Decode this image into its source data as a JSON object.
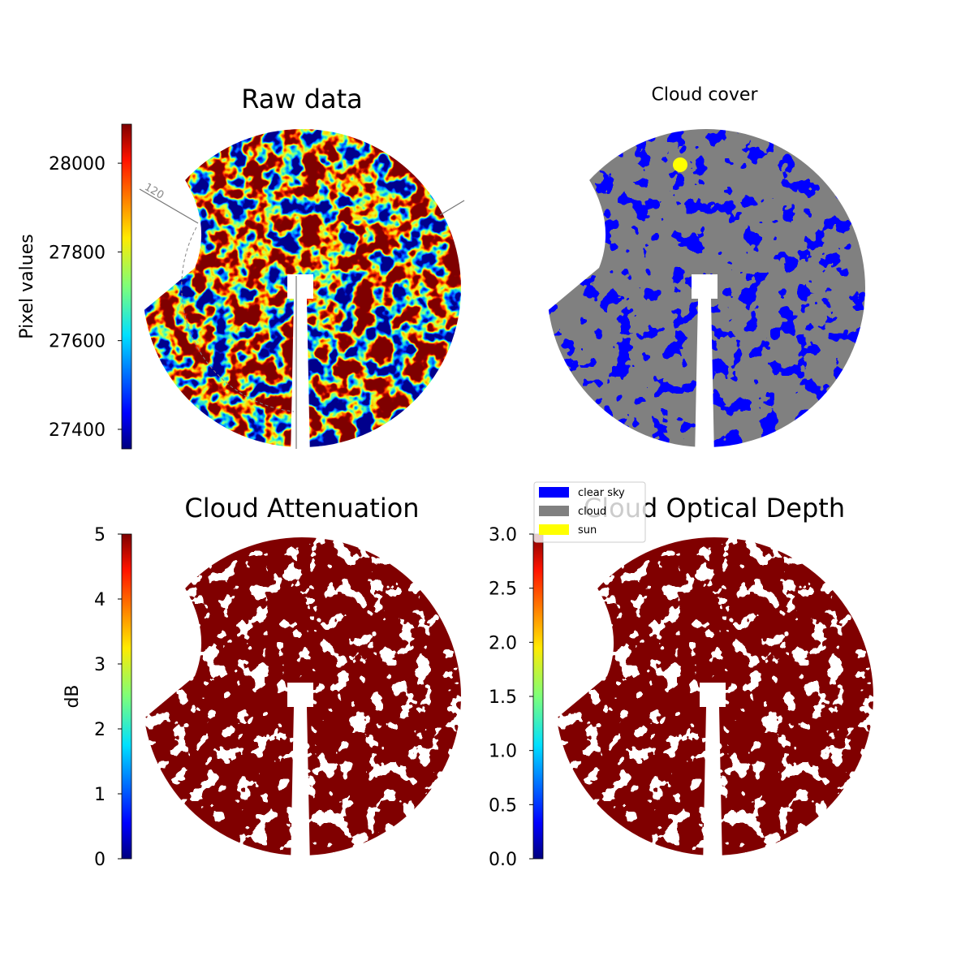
{
  "chart_data": [
    {
      "type": "image",
      "title": "Raw data",
      "cmap": "jet",
      "colorbar": {
        "label": "Pixel values",
        "lim": [
          27356,
          28088
        ],
        "ticks": [
          27400,
          27600,
          27800,
          28000
        ]
      },
      "annotations": [
        "120"
      ]
    },
    {
      "type": "image",
      "title": "Cloud cover",
      "series": [
        {
          "name": "clear sky",
          "color": "#0000ff"
        },
        {
          "name": "cloud",
          "color": "#808080"
        },
        {
          "name": "sun",
          "color": "#ffff00"
        }
      ]
    },
    {
      "type": "image",
      "title": "Cloud Attenuation",
      "cmap": "jet",
      "colorbar": {
        "label": "dB",
        "lim": [
          0,
          5
        ],
        "ticks": [
          0,
          1,
          2,
          3,
          4,
          5
        ]
      }
    },
    {
      "type": "image",
      "title": "Cloud Optical Depth",
      "cmap": "jet",
      "colorbar": {
        "label": null,
        "lim": [
          0,
          3
        ],
        "ticks": [
          {
            "value": 0,
            "label": "0.0"
          },
          {
            "value": 0.5,
            "label": "0.5"
          },
          {
            "value": 1,
            "label": "1.0"
          },
          {
            "value": 1.5,
            "label": "1.5"
          },
          {
            "value": 2,
            "label": "2.0"
          },
          {
            "value": 2.5,
            "label": "2.5"
          },
          {
            "value": 3,
            "label": "3.0"
          }
        ]
      }
    }
  ]
}
